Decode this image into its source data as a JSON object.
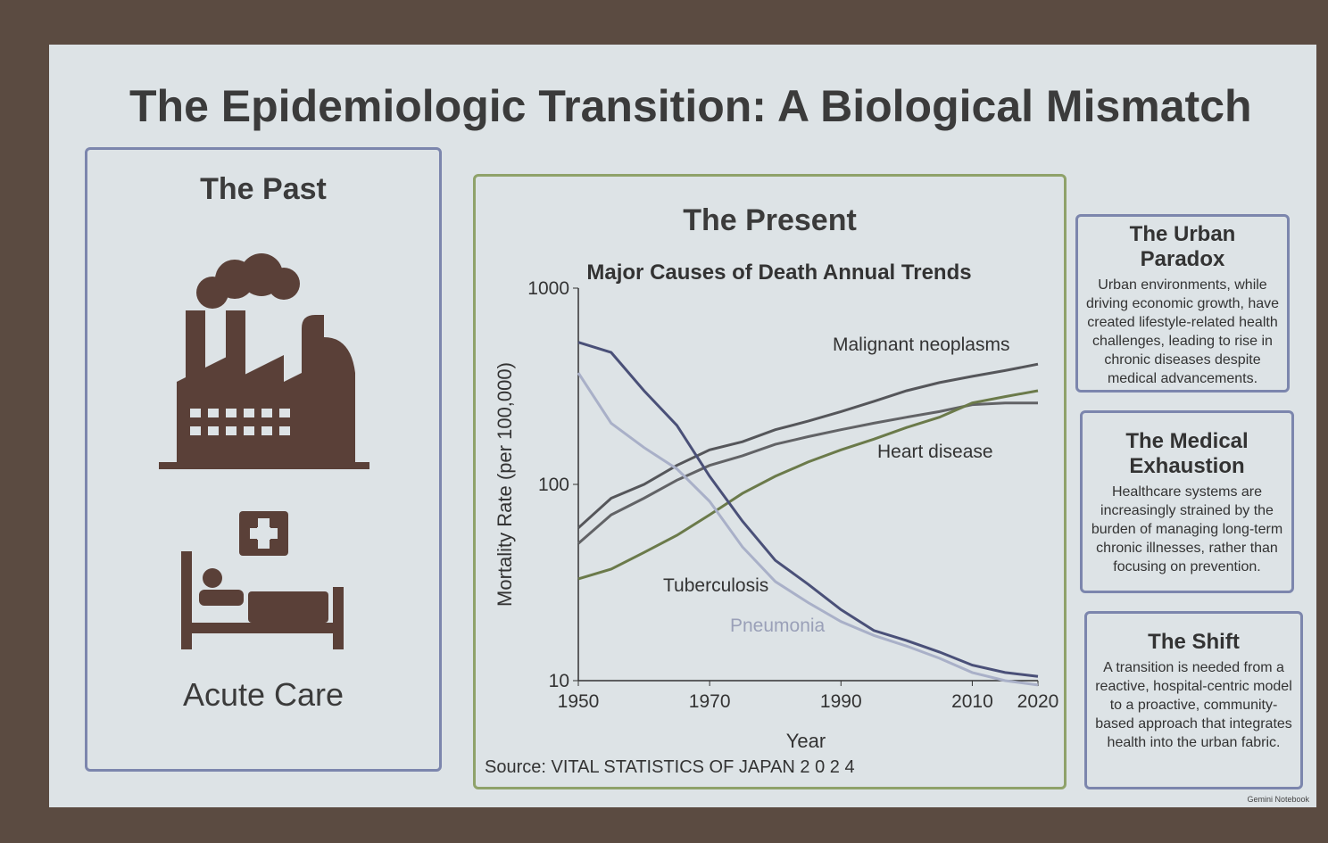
{
  "title": "The Epidemiologic Transition: A Biological Mismatch",
  "past": {
    "heading": "The Past",
    "caption": "Acute Care"
  },
  "present": {
    "heading": "The Present",
    "source": "Source: VITAL STATISTICS OF JAPAN 2 0 2 4"
  },
  "boxes": [
    {
      "heading": "The Urban Paradox",
      "body": "Urban environments, while driving economic growth, have created lifestyle-related health challenges, leading to rise in chronic diseases despite medical advancements."
    },
    {
      "heading": "The Medical Exhaustion",
      "body": "Healthcare systems are increasingly strained by the burden of managing long-term chronic illnesses, rather than focusing on prevention."
    },
    {
      "heading": "The Shift",
      "body": "A transition is needed from a reactive, hospital-centric model to a proactive, community-based approach that integrates health into the urban fabric."
    }
  ],
  "footer": "Gemini Notebook",
  "chart_data": {
    "type": "line",
    "title": "Major Causes of Death Annual Trends",
    "x_label": "Year",
    "y_label": "Mortality Rate (per 100,000)",
    "x": [
      1950,
      1955,
      1960,
      1965,
      1970,
      1975,
      1980,
      1985,
      1990,
      1995,
      2000,
      2005,
      2010,
      2015,
      2020
    ],
    "xlim": [
      1950,
      2020
    ],
    "xticks": [
      1950,
      1970,
      1990,
      2010,
      2020
    ],
    "ylim": [
      10,
      1000
    ],
    "yticks": [
      10,
      100,
      1000
    ],
    "log_y": true,
    "series": [
      {
        "name": "Malignant neoplasms",
        "color": "#55565a",
        "values": [
          60,
          85,
          100,
          125,
          150,
          165,
          190,
          210,
          235,
          265,
          300,
          330,
          355,
          380,
          410
        ]
      },
      {
        "name": null,
        "color": "#626366",
        "values": [
          50,
          70,
          85,
          105,
          125,
          140,
          160,
          175,
          190,
          205,
          220,
          235,
          255,
          260,
          260
        ]
      },
      {
        "name": "Heart disease",
        "color": "#6b7a4a",
        "values": [
          33,
          37,
          45,
          55,
          70,
          90,
          110,
          130,
          150,
          170,
          195,
          220,
          260,
          280,
          300
        ]
      },
      {
        "name": "Tuberculosis",
        "color": "#4a5078",
        "values": [
          530,
          470,
          300,
          200,
          110,
          65,
          41,
          31,
          23,
          18,
          16,
          14,
          12,
          11,
          10.5
        ]
      },
      {
        "name": "Pneumonia",
        "color": "#a9b0c8",
        "values": [
          370,
          205,
          154,
          120,
          82,
          48,
          32,
          25,
          20,
          17,
          15,
          13,
          11,
          10,
          9.5
        ]
      }
    ]
  }
}
